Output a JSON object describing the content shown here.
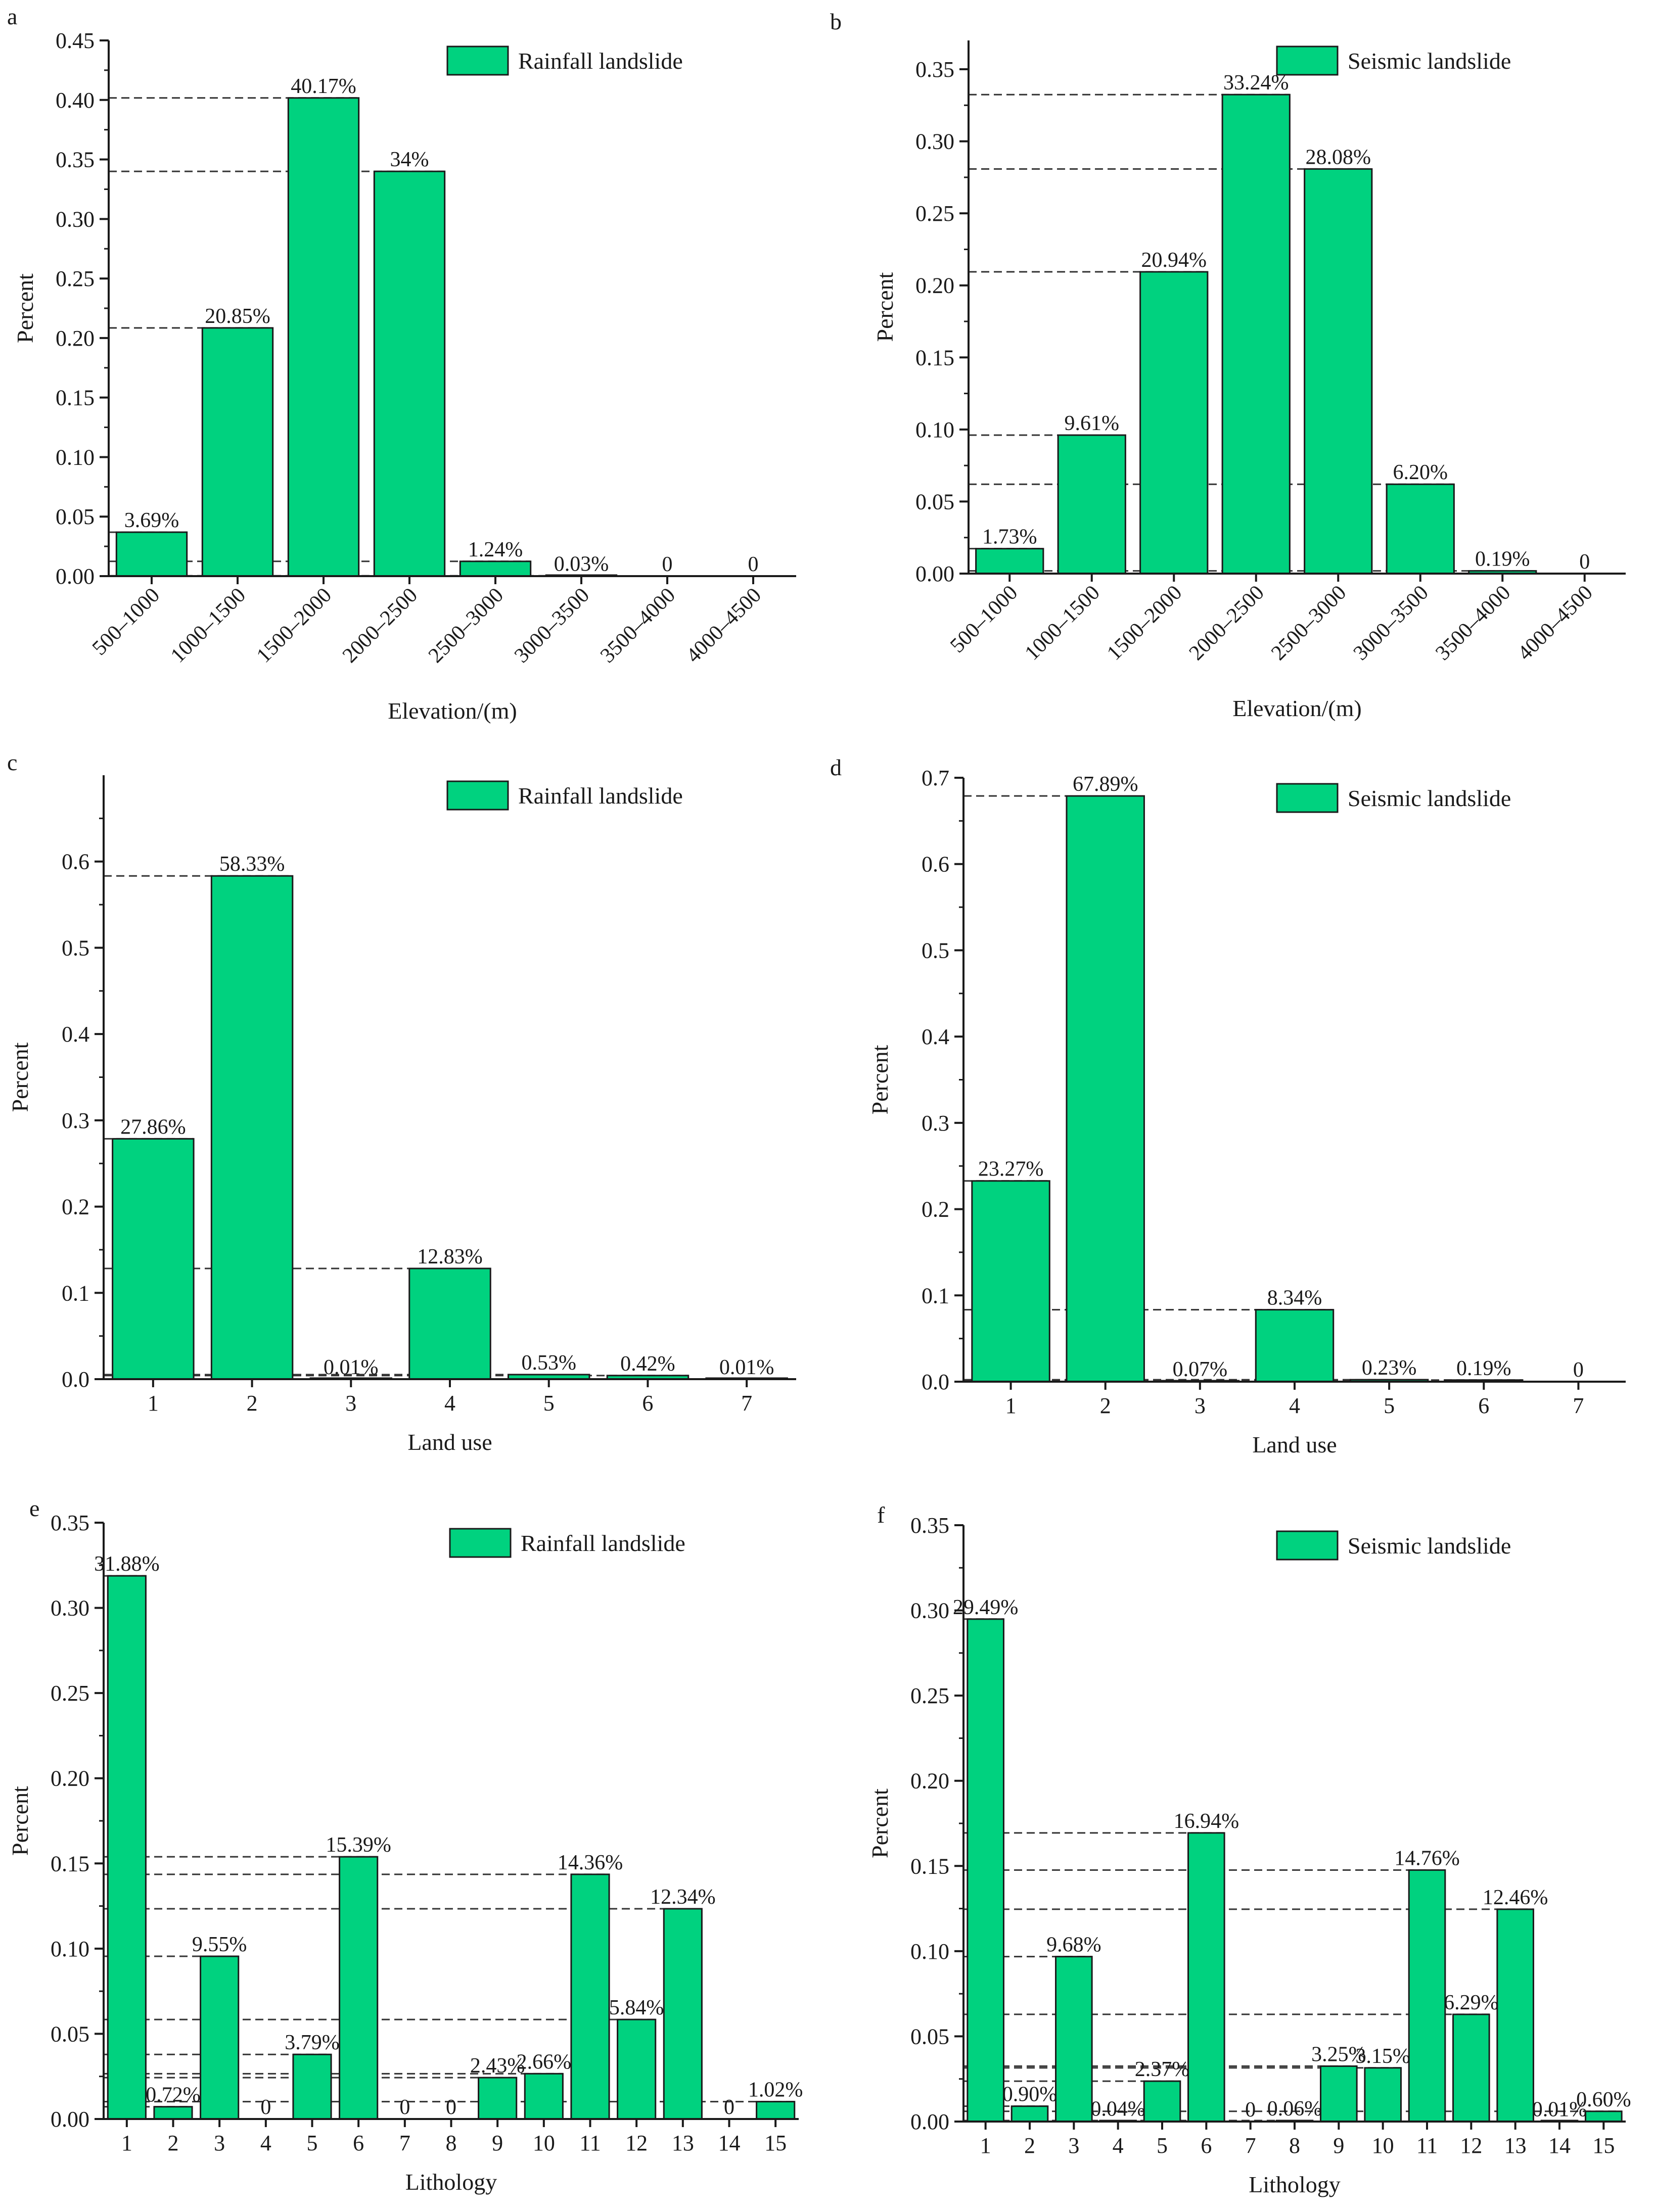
{
  "colors": {
    "bar": "#00d27f",
    "barStroke": "#1a1a1a",
    "axis": "#1a1a1a",
    "dash": "#333333"
  },
  "chart_data": [
    {
      "type": "bar",
      "panel": "a",
      "legend": "Rainfall landslide",
      "xlabel": "Elevation/(m)",
      "ylabel": "Percent",
      "rotateTicks": true,
      "categories": [
        "500–1000",
        "1000–1500",
        "1500–2000",
        "2000–2500",
        "2500–3000",
        "3000–3500",
        "3500–4000",
        "4000–4500"
      ],
      "values": [
        0.0369,
        0.2085,
        0.4017,
        0.34,
        0.0124,
        0.0003,
        0,
        0
      ],
      "labels": [
        "3.69%",
        "20.85%",
        "40.17%",
        "34%",
        "1.24%",
        "0.03%",
        "0",
        "0"
      ],
      "ylim": [
        0,
        0.45
      ],
      "yticks": [
        "0.00",
        "0.05",
        "0.10",
        "0.15",
        "0.20",
        "0.25",
        "0.30",
        "0.35",
        "0.40",
        "0.45"
      ]
    },
    {
      "type": "bar",
      "panel": "b",
      "legend": "Seismic landslide",
      "xlabel": "Elevation/(m)",
      "ylabel": "Percent",
      "rotateTicks": true,
      "categories": [
        "500–1000",
        "1000–1500",
        "1500–2000",
        "2000–2500",
        "2500–3000",
        "3000–3500",
        "3500–4000",
        "4000–4500"
      ],
      "values": [
        0.0173,
        0.0961,
        0.2094,
        0.3324,
        0.2808,
        0.062,
        0.0019,
        0
      ],
      "labels": [
        "1.73%",
        "9.61%",
        "20.94%",
        "33.24%",
        "28.08%",
        "6.20%",
        "0.19%",
        "0"
      ],
      "ylim": [
        0,
        0.37
      ],
      "yticks": [
        "0.00",
        "0.05",
        "0.10",
        "0.15",
        "0.20",
        "0.25",
        "0.30",
        "0.35"
      ]
    },
    {
      "type": "bar",
      "panel": "c",
      "legend": "Rainfall landslide",
      "xlabel": "Land use",
      "ylabel": "Percent",
      "rotateTicks": false,
      "categories": [
        "1",
        "2",
        "3",
        "4",
        "5",
        "6",
        "7"
      ],
      "values": [
        0.2786,
        0.5833,
        0.0001,
        0.1283,
        0.0053,
        0.0042,
        0.0001
      ],
      "labels": [
        "27.86%",
        "58.33%",
        "0.01%",
        "12.83%",
        "0.53%",
        "0.42%",
        "0.01%"
      ],
      "ylim": [
        0,
        0.7
      ],
      "yticks": [
        "0.0",
        "0.1",
        "0.2",
        "0.3",
        "0.4",
        "0.5",
        "0.6"
      ]
    },
    {
      "type": "bar",
      "panel": "d",
      "legend": "Seismic landslide",
      "xlabel": "Land use",
      "ylabel": "Percent",
      "rotateTicks": false,
      "categories": [
        "1",
        "2",
        "3",
        "4",
        "5",
        "6",
        "7"
      ],
      "values": [
        0.2327,
        0.6789,
        0.0007,
        0.0834,
        0.0023,
        0.0019,
        0
      ],
      "labels": [
        "23.27%",
        "67.89%",
        "0.07%",
        "8.34%",
        "0.23%",
        "0.19%",
        "0"
      ],
      "ylim": [
        0,
        0.7
      ],
      "yticks": [
        "0.0",
        "0.1",
        "0.2",
        "0.3",
        "0.4",
        "0.5",
        "0.6",
        "0.7"
      ]
    },
    {
      "type": "bar",
      "panel": "e",
      "legend": "Rainfall landslide",
      "xlabel": "Lithology",
      "ylabel": "Percent",
      "rotateTicks": false,
      "categories": [
        "1",
        "2",
        "3",
        "4",
        "5",
        "6",
        "7",
        "8",
        "9",
        "10",
        "11",
        "12",
        "13",
        "14",
        "15"
      ],
      "values": [
        0.3188,
        0.0072,
        0.0955,
        0,
        0.0379,
        0.1539,
        0,
        0,
        0.0243,
        0.0266,
        0.1436,
        0.0584,
        0.1234,
        0,
        0.0102
      ],
      "labels": [
        "31.88%",
        "0.72%",
        "9.55%",
        "0",
        "3.79%",
        "15.39%",
        "0",
        "0",
        "2.43%",
        "2.66%",
        "14.36%",
        "5.84%",
        "12.34%",
        "0",
        "1.02%"
      ],
      "ylim": [
        0,
        0.35
      ],
      "yticks": [
        "0.00",
        "0.05",
        "0.10",
        "0.15",
        "0.20",
        "0.25",
        "0.30",
        "0.35"
      ]
    },
    {
      "type": "bar",
      "panel": "f",
      "legend": "Seismic landslide",
      "xlabel": "Lithology",
      "ylabel": "Percent",
      "rotateTicks": false,
      "categories": [
        "1",
        "2",
        "3",
        "4",
        "5",
        "6",
        "7",
        "8",
        "9",
        "10",
        "11",
        "12",
        "13",
        "14",
        "15"
      ],
      "values": [
        0.2949,
        0.009,
        0.0968,
        0.0004,
        0.0237,
        0.1694,
        0,
        0.0006,
        0.0325,
        0.0315,
        0.1476,
        0.0629,
        0.1246,
        0.0001,
        0.006
      ],
      "labels": [
        "29.49%",
        "0.90%",
        "9.68%",
        "0.04%",
        "2.37%",
        "16.94%",
        "0",
        "0.06%",
        "3.25%",
        "3.15%",
        "14.76%",
        "6.29%",
        "12.46%",
        "0.01%",
        "0.60%"
      ],
      "ylim": [
        0,
        0.35
      ],
      "yticks": [
        "0.00",
        "0.05",
        "0.10",
        "0.15",
        "0.20",
        "0.25",
        "0.30",
        "0.35"
      ]
    }
  ]
}
